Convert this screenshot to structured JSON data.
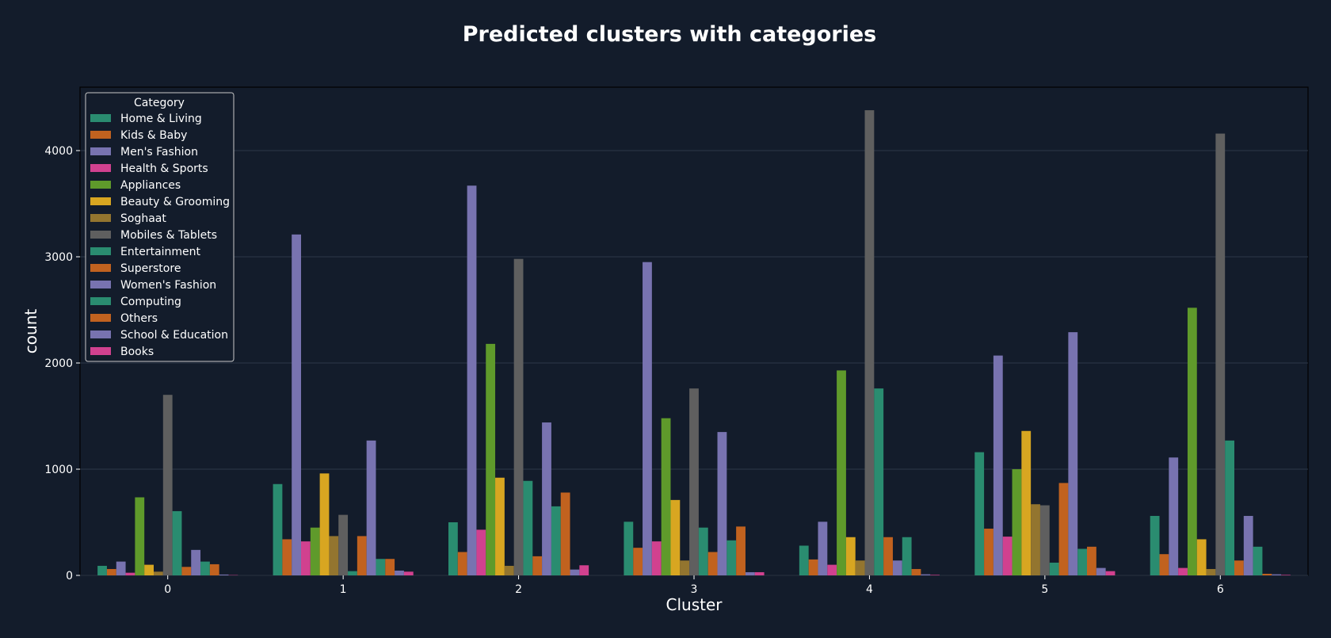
{
  "chart_data": {
    "type": "bar",
    "title": "Predicted clusters with categories",
    "xlabel": "Cluster",
    "ylabel": "count",
    "categories": [
      "0",
      "1",
      "2",
      "3",
      "4",
      "5",
      "6"
    ],
    "ylim": [
      0,
      4600
    ],
    "yticks": [
      0,
      1000,
      2000,
      3000,
      4000
    ],
    "grid": true,
    "legend_title": "Category",
    "legend_position": "top-left",
    "series": [
      {
        "name": "Home & Living",
        "color": "#2a8c70",
        "values": [
          90,
          860,
          500,
          505,
          280,
          1160,
          560
        ]
      },
      {
        "name": "Kids & Baby",
        "color": "#c1621f",
        "values": [
          60,
          340,
          220,
          260,
          150,
          440,
          200
        ]
      },
      {
        "name": "Men's Fashion",
        "color": "#7873b0",
        "values": [
          130,
          3210,
          3670,
          2950,
          505,
          2070,
          1110
        ]
      },
      {
        "name": "Health & Sports",
        "color": "#d1418f",
        "values": [
          25,
          320,
          430,
          320,
          100,
          365,
          70
        ]
      },
      {
        "name": "Appliances",
        "color": "#5f9a2b",
        "values": [
          735,
          450,
          2180,
          1480,
          1930,
          1000,
          2520
        ]
      },
      {
        "name": "Beauty & Grooming",
        "color": "#d8a621",
        "values": [
          100,
          960,
          920,
          710,
          360,
          1360,
          340
        ]
      },
      {
        "name": "Soghaat",
        "color": "#93752f",
        "values": [
          35,
          370,
          90,
          140,
          140,
          670,
          60
        ]
      },
      {
        "name": "Mobiles & Tablets",
        "color": "#5f5f5f",
        "values": [
          1700,
          570,
          2980,
          1760,
          4380,
          660,
          4160
        ]
      },
      {
        "name": "Entertainment",
        "color": "#2a8c70",
        "values": [
          605,
          40,
          890,
          450,
          1760,
          120,
          1270
        ]
      },
      {
        "name": "Superstore",
        "color": "#c1621f",
        "values": [
          80,
          370,
          180,
          220,
          360,
          870,
          140
        ]
      },
      {
        "name": "Women's Fashion",
        "color": "#7873b0",
        "values": [
          240,
          1270,
          1440,
          1350,
          140,
          2290,
          560
        ]
      },
      {
        "name": "Computing",
        "color": "#2a8c70",
        "values": [
          130,
          155,
          650,
          330,
          360,
          250,
          270
        ]
      },
      {
        "name": "Others",
        "color": "#c1621f",
        "values": [
          105,
          155,
          780,
          460,
          60,
          270,
          15
        ]
      },
      {
        "name": "School & Education",
        "color": "#7873b0",
        "values": [
          8,
          45,
          55,
          30,
          10,
          70,
          10
        ]
      },
      {
        "name": "Books",
        "color": "#d1418f",
        "values": [
          3,
          35,
          95,
          30,
          5,
          40,
          5
        ]
      }
    ]
  }
}
